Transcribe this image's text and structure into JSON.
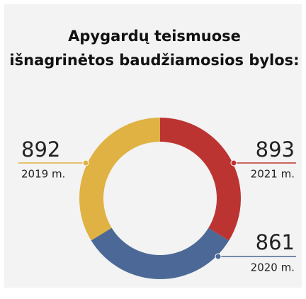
{
  "chart_data": {
    "type": "donut",
    "title": [
      "Apygardų teismuose",
      "išnagrinėtos baudžiamosios bylos:"
    ],
    "categories": [
      "2021 m.",
      "2020 m.",
      "2019 m."
    ],
    "values": [
      893,
      861,
      892
    ],
    "colors": [
      "#bc3431",
      "#4c6896",
      "#e0b143"
    ]
  }
}
